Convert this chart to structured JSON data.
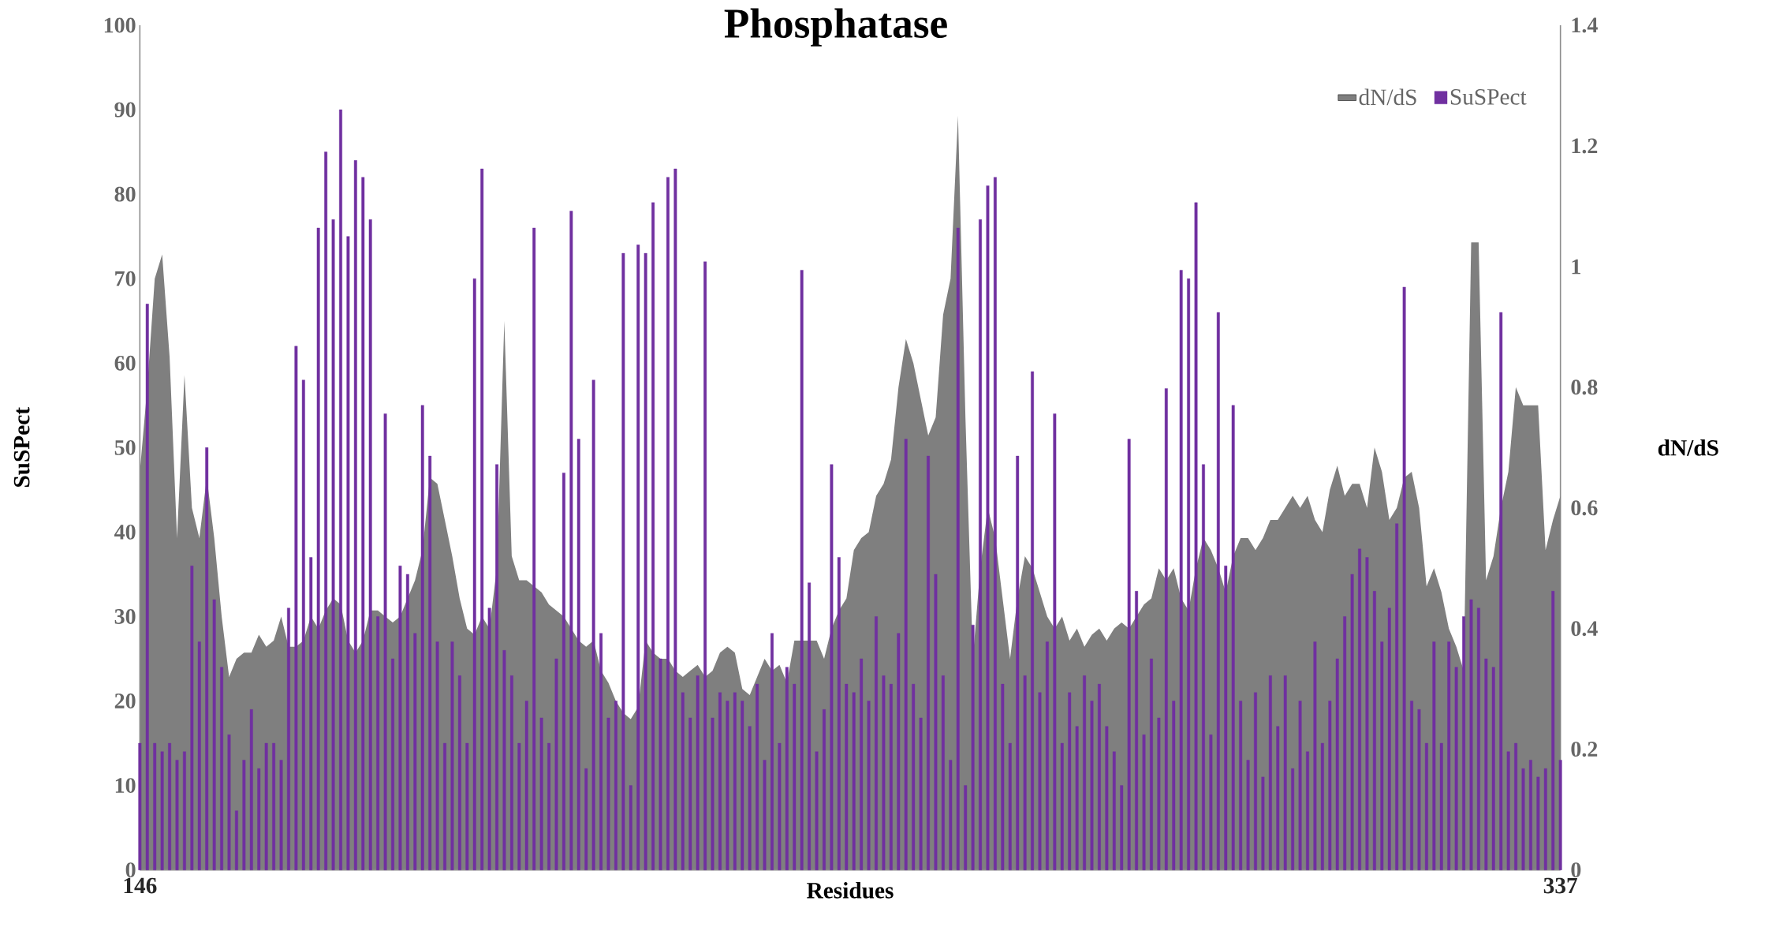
{
  "chart_data": {
    "type": "bar",
    "title": "Phosphatase",
    "xlabel": "Residues",
    "ylabel": "SuSPect",
    "y2label": "dN/dS",
    "categories": [
      "146",
      null,
      null,
      null,
      null,
      null,
      null,
      null,
      null,
      null,
      null,
      null,
      null,
      null,
      null,
      null,
      null,
      null,
      null,
      null,
      null,
      null,
      null,
      null,
      null,
      null,
      null,
      null,
      null,
      null,
      null,
      null,
      null,
      null,
      null,
      null,
      null,
      null,
      null,
      null,
      null,
      null,
      null,
      null,
      null,
      null,
      null,
      null,
      null,
      null,
      null,
      null,
      null,
      null,
      null,
      null,
      null,
      null,
      null,
      null,
      null,
      null,
      null,
      null,
      null,
      null,
      null,
      null,
      null,
      null,
      null,
      null,
      null,
      null,
      null,
      null,
      null,
      null,
      null,
      null,
      null,
      null,
      null,
      null,
      null,
      null,
      null,
      null,
      null,
      null,
      null,
      null,
      null,
      null,
      null,
      null,
      null,
      null,
      null,
      null,
      null,
      null,
      null,
      null,
      null,
      null,
      null,
      null,
      null,
      null,
      null,
      null,
      null,
      null,
      null,
      null,
      null,
      null,
      null,
      null,
      null,
      null,
      null,
      null,
      null,
      null,
      null,
      null,
      null,
      null,
      null,
      null,
      null,
      null,
      null,
      null,
      null,
      null,
      null,
      null,
      null,
      null,
      null,
      null,
      null,
      null,
      null,
      null,
      null,
      null,
      null,
      null,
      null,
      null,
      null,
      null,
      null,
      null,
      null,
      null,
      null,
      null,
      null,
      null,
      null,
      null,
      null,
      null,
      null,
      null,
      null,
      null,
      null,
      null,
      null,
      null,
      null,
      null,
      null,
      null,
      null,
      null,
      null,
      null,
      null,
      null,
      null,
      null,
      null,
      null,
      null,
      "337"
    ],
    "series": [
      {
        "name": "dN/dS",
        "type": "area",
        "axis": "y2",
        "color": "#7f7f7f",
        "values": [
          0.66,
          0.8,
          0.98,
          1.02,
          0.85,
          0.55,
          0.82,
          0.6,
          0.55,
          0.65,
          0.55,
          0.42,
          0.32,
          0.35,
          0.36,
          0.36,
          0.39,
          0.37,
          0.38,
          0.42,
          0.37,
          0.37,
          0.38,
          0.42,
          0.4,
          0.43,
          0.45,
          0.44,
          0.38,
          0.36,
          0.38,
          0.43,
          0.43,
          0.42,
          0.41,
          0.42,
          0.45,
          0.48,
          0.53,
          0.65,
          0.64,
          0.58,
          0.52,
          0.45,
          0.4,
          0.39,
          0.42,
          0.4,
          0.5,
          0.91,
          0.52,
          0.48,
          0.48,
          0.47,
          0.46,
          0.44,
          0.43,
          0.42,
          0.4,
          0.38,
          0.37,
          0.38,
          0.33,
          0.31,
          0.28,
          0.26,
          0.25,
          0.27,
          0.38,
          0.36,
          0.35,
          0.35,
          0.33,
          0.32,
          0.33,
          0.34,
          0.32,
          0.33,
          0.36,
          0.37,
          0.36,
          0.3,
          0.29,
          0.32,
          0.35,
          0.33,
          0.34,
          0.31,
          0.38,
          0.38,
          0.38,
          0.38,
          0.35,
          0.4,
          0.43,
          0.45,
          0.53,
          0.55,
          0.56,
          0.62,
          0.64,
          0.68,
          0.8,
          0.88,
          0.84,
          0.78,
          0.72,
          0.75,
          0.92,
          0.98,
          1.25,
          0.75,
          0.35,
          0.5,
          0.6,
          0.55,
          0.45,
          0.35,
          0.45,
          0.52,
          0.5,
          0.46,
          0.42,
          0.4,
          0.42,
          0.38,
          0.4,
          0.37,
          0.39,
          0.4,
          0.38,
          0.4,
          0.41,
          0.4,
          0.42,
          0.44,
          0.45,
          0.5,
          0.48,
          0.5,
          0.45,
          0.43,
          0.5,
          0.55,
          0.53,
          0.5,
          0.46,
          0.52,
          0.55,
          0.55,
          0.53,
          0.55,
          0.58,
          0.58,
          0.6,
          0.62,
          0.6,
          0.62,
          0.58,
          0.56,
          0.63,
          0.67,
          0.62,
          0.64,
          0.64,
          0.6,
          0.7,
          0.66,
          0.58,
          0.6,
          0.65,
          0.66,
          0.6,
          0.47,
          0.5,
          0.46,
          0.4,
          0.37,
          0.33,
          1.04,
          1.04,
          0.48,
          0.52,
          0.6,
          0.66,
          0.8,
          0.77,
          0.77,
          0.77,
          0.53,
          0.58,
          0.62
        ]
      },
      {
        "name": "SuSPect",
        "color": "#7030a0",
        "values": [
          15,
          67,
          15,
          14,
          15,
          13,
          14,
          36,
          27,
          50,
          32,
          24,
          16,
          7,
          13,
          19,
          12,
          15,
          15,
          13,
          31,
          62,
          58,
          37,
          76,
          85,
          77,
          90,
          75,
          84,
          82,
          77,
          30,
          54,
          25,
          36,
          35,
          28,
          55,
          49,
          27,
          15,
          27,
          23,
          15,
          70,
          83,
          31,
          48,
          26,
          23,
          15,
          20,
          76,
          18,
          15,
          25,
          47,
          78,
          51,
          12,
          58,
          28,
          18,
          20,
          73,
          10,
          74,
          73,
          79,
          25,
          82,
          83,
          21,
          18,
          23,
          72,
          18,
          21,
          20,
          21,
          20,
          17,
          22,
          13,
          28,
          15,
          24,
          22,
          71,
          34,
          14,
          19,
          48,
          37,
          22,
          21,
          25,
          20,
          30,
          23,
          22,
          28,
          51,
          22,
          18,
          49,
          35,
          23,
          13,
          76,
          10,
          29,
          77,
          81,
          82,
          22,
          15,
          49,
          23,
          59,
          21,
          27,
          54,
          15,
          21,
          17,
          23,
          20,
          22,
          17,
          14,
          10,
          51,
          33,
          16,
          25,
          18,
          57,
          20,
          71,
          70,
          79,
          48,
          16,
          66,
          36,
          55,
          20,
          13,
          21,
          11,
          23,
          17,
          23,
          12,
          20,
          14,
          27,
          15,
          20,
          25,
          30,
          35,
          38,
          37,
          33,
          27,
          31,
          41,
          69,
          20,
          19,
          15,
          27,
          15,
          27,
          24,
          30,
          32,
          31,
          25,
          24,
          66,
          14,
          15,
          12,
          13,
          11,
          12,
          33,
          13
        ]
      }
    ],
    "ylim": [
      0,
      100
    ],
    "yticks": [
      0,
      10,
      20,
      30,
      40,
      50,
      60,
      70,
      80,
      90,
      100
    ],
    "y2lim": [
      0,
      1.4
    ],
    "y2ticks": [
      0,
      0.2,
      0.4,
      0.6,
      0.8,
      1,
      1.2,
      1.4
    ],
    "legend": "top right"
  }
}
